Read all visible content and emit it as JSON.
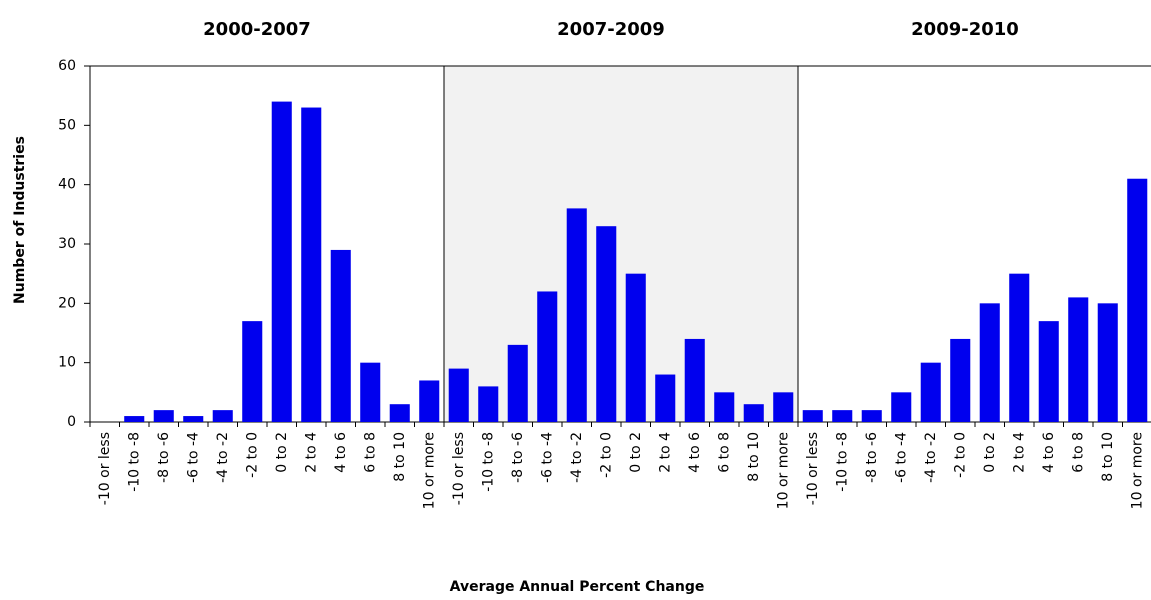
{
  "chart_data": {
    "type": "bar",
    "y_label": "Number of Industries",
    "x_label": "Average Annual  Percent Change",
    "ylim": [
      0,
      60
    ],
    "yticks": [
      0,
      10,
      20,
      30,
      40,
      50,
      60
    ],
    "color": "#0000ee",
    "panels": [
      {
        "title": "2000-2007",
        "background": "#ffffff",
        "categories": [
          "-10 or less",
          "-10 to -8",
          "-8 to -6",
          "-6 to -4",
          "-4 to -2",
          "-2 to 0",
          "0 to 2",
          "2 to 4",
          "4 to 6",
          "6 to 8",
          "8 to 10",
          "10 or more"
        ],
        "values": [
          0,
          1,
          2,
          1,
          2,
          17,
          54,
          53,
          29,
          10,
          3,
          7
        ]
      },
      {
        "title": "2007-2009",
        "background": "#f2f2f2",
        "categories": [
          "-10 or less",
          "-10 to -8",
          "-8 to -6",
          "-6 to -4",
          "-4 to -2",
          "-2 to 0",
          "0 to 2",
          "2 to 4",
          "4 to 6",
          "6 to 8",
          "8 to 10",
          "10 or more"
        ],
        "values": [
          9,
          6,
          13,
          22,
          36,
          33,
          25,
          8,
          14,
          5,
          3,
          5
        ]
      },
      {
        "title": "2009-2010",
        "background": "#ffffff",
        "categories": [
          "-10 or less",
          "-10 to -8",
          "-8 to -6",
          "-6 to -4",
          "-4 to -2",
          "-2 to 0",
          "0 to 2",
          "2 to 4",
          "4 to 6",
          "6 to 8",
          "8 to 10",
          "10 or more"
        ],
        "values": [
          2,
          2,
          2,
          5,
          10,
          14,
          20,
          25,
          17,
          21,
          20,
          41
        ]
      }
    ]
  }
}
